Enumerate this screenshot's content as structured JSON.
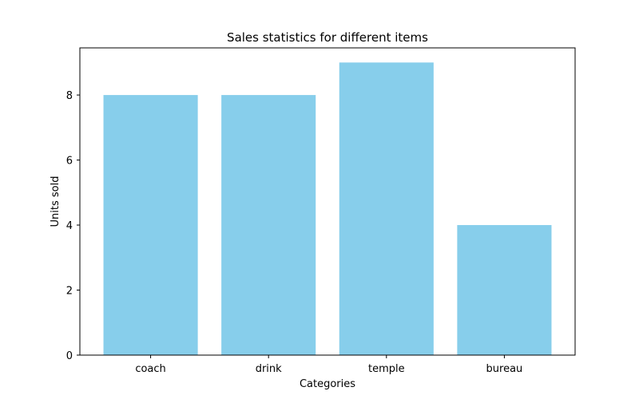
{
  "chart_data": {
    "type": "bar",
    "title": "Sales statistics for different items",
    "xlabel": "Categories",
    "ylabel": "Units sold",
    "categories": [
      "coach",
      "drink",
      "temple",
      "bureau"
    ],
    "values": [
      8,
      8,
      9,
      4
    ],
    "ylim": [
      0,
      9.45
    ],
    "yticks": [
      0,
      2,
      4,
      6,
      8
    ],
    "bar_color": "#87ceeb",
    "grid": false
  }
}
